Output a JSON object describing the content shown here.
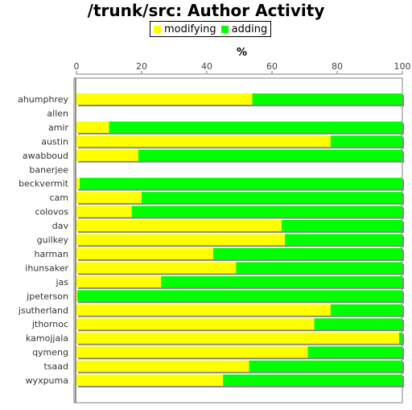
{
  "chart_data": {
    "type": "bar",
    "orientation": "horizontal",
    "stacked": true,
    "title": "/trunk/src: Author Activity",
    "xlabel": "%",
    "ylabel": "",
    "xlim": [
      0,
      100
    ],
    "xticks": [
      "0",
      "20",
      "40",
      "60",
      "80",
      "100"
    ],
    "legend_position": "top",
    "grid": false,
    "categories": [
      "ahumphrey",
      "allen",
      "amir",
      "austin",
      "awabboud",
      "banerjee",
      "beckvermit",
      "cam",
      "colovos",
      "dav",
      "guilkey",
      "harman",
      "ihunsaker",
      "jas",
      "jpeterson",
      "jsutherland",
      "jthornoc",
      "kamojjala",
      "qymeng",
      "tsaad",
      "wyxpuma"
    ],
    "series": [
      {
        "name": "modifying",
        "color": "#ffff00",
        "values": [
          54,
          0,
          10,
          78,
          19,
          0,
          1,
          20,
          17,
          63,
          64,
          42,
          49,
          26,
          0.3,
          78,
          73,
          99,
          71,
          53,
          45
        ]
      },
      {
        "name": "adding",
        "color": "#00ff00",
        "values": [
          46,
          0,
          90,
          22,
          81,
          0,
          99,
          80,
          83,
          37,
          36,
          58,
          51,
          74,
          99.7,
          22,
          27,
          1,
          29,
          47,
          55
        ]
      }
    ]
  }
}
